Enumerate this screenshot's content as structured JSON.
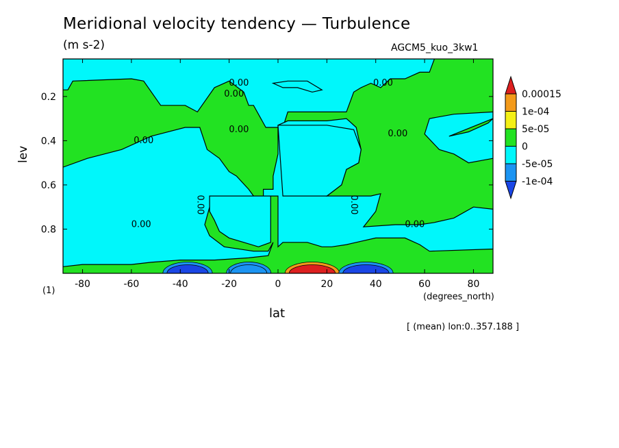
{
  "chart_data": {
    "type": "heatmap",
    "title": "Meridional velocity tendency — Turbulence",
    "units": "(m s-2)",
    "run_label": "AGCM5_kuo_3kw1",
    "xlabel": "lat",
    "xunits": "(degrees_north)",
    "ylabel": "lev",
    "index_label": "(1)",
    "mean_note": "[ (mean) lon:0..357.188 ]",
    "xlim": [
      -88,
      88
    ],
    "ylim": [
      0.03,
      1.0
    ],
    "y_inverted": true,
    "x_ticks": [
      -80,
      -60,
      -40,
      -20,
      0,
      20,
      40,
      60,
      80
    ],
    "x_tick_labels": [
      "-80",
      "-60",
      "-40",
      "-20",
      "0",
      "20",
      "40",
      "60",
      "80"
    ],
    "y_ticks": [
      0.2,
      0.4,
      0.6,
      0.8
    ],
    "y_tick_labels": [
      "0.2",
      "0.4",
      "0.6",
      "0.8"
    ],
    "contour_labels": [
      {
        "text": "0.00",
        "x": -16,
        "y": 0.14
      },
      {
        "text": "0.00",
        "x": -18,
        "y": 0.19
      },
      {
        "text": "0.00",
        "x": 43,
        "y": 0.14
      },
      {
        "text": "0.00",
        "x": -55,
        "y": 0.4
      },
      {
        "text": "0.00",
        "x": -16,
        "y": 0.35
      },
      {
        "text": "0.00",
        "x": 49,
        "y": 0.37
      },
      {
        "text": "0.00",
        "x": -56,
        "y": 0.78
      },
      {
        "text": "0.00",
        "x": 56,
        "y": 0.78
      },
      {
        "text": "0.00",
        "x": -32,
        "y": 0.69
      },
      {
        "text": "0.00",
        "x": 31,
        "y": 0.69
      }
    ],
    "colorbar": {
      "levels": [
        "0.00015",
        "1e-04",
        "5e-05",
        "0",
        "-5e-05",
        "-1e-04"
      ],
      "colors": [
        "#dd1f1f",
        "#f39a1a",
        "#f4f016",
        "#22e222",
        "#00f7fb",
        "#1b94f2",
        "#1a46e6"
      ]
    },
    "fields": {
      "positive_color": "#22e222",
      "negative_color": "#00f7fb",
      "strong_negative_color": "#1b94f2",
      "stronger_negative_color": "#1a46e6",
      "weak_positive_color": "#f4f016",
      "mid_positive_color": "#f39a1a",
      "strong_positive_color": "#dd1f1f"
    },
    "negative_regions": [
      [
        [
          -88,
          0.17
        ],
        [
          -86,
          0.17
        ],
        [
          -84,
          0.13
        ],
        [
          -60,
          0.12
        ],
        [
          -55,
          0.13
        ],
        [
          -48,
          0.24
        ],
        [
          -38,
          0.24
        ],
        [
          -33,
          0.27
        ],
        [
          -26,
          0.16
        ],
        [
          -20,
          0.13
        ],
        [
          -14,
          0.18
        ],
        [
          -12,
          0.24
        ],
        [
          -10,
          0.24
        ],
        [
          -5,
          0.34
        ],
        [
          2,
          0.34
        ],
        [
          4,
          0.27
        ],
        [
          28,
          0.27
        ],
        [
          31,
          0.18
        ],
        [
          34,
          0.16
        ],
        [
          38,
          0.14
        ],
        [
          42,
          0.16
        ],
        [
          46,
          0.12
        ],
        [
          52,
          0.12
        ],
        [
          58,
          0.09
        ],
        [
          62,
          0.09
        ],
        [
          64,
          0.03
        ],
        [
          -88,
          0.03
        ]
      ],
      [
        [
          -88,
          0.52
        ],
        [
          -78,
          0.48
        ],
        [
          -64,
          0.44
        ],
        [
          -52,
          0.38
        ],
        [
          -38,
          0.34
        ],
        [
          -32,
          0.34
        ],
        [
          -29,
          0.44
        ],
        [
          -24,
          0.48
        ],
        [
          -20,
          0.54
        ],
        [
          -17,
          0.56
        ],
        [
          -12,
          0.62
        ],
        [
          -10,
          0.65
        ],
        [
          -6,
          0.65
        ],
        [
          -6,
          0.62
        ],
        [
          -2,
          0.62
        ],
        [
          -2,
          0.56
        ],
        [
          0,
          0.46
        ],
        [
          0,
          0.33
        ],
        [
          4,
          0.31
        ],
        [
          10,
          0.31
        ],
        [
          20,
          0.31
        ],
        [
          28,
          0.3
        ],
        [
          32,
          0.34
        ],
        [
          34,
          0.44
        ],
        [
          33,
          0.5
        ],
        [
          28,
          0.53
        ],
        [
          26,
          0.6
        ],
        [
          20,
          0.65
        ],
        [
          24,
          0.65
        ],
        [
          38,
          0.65
        ],
        [
          42,
          0.64
        ],
        [
          40,
          0.72
        ],
        [
          35,
          0.79
        ],
        [
          48,
          0.78
        ],
        [
          58,
          0.78
        ],
        [
          64,
          0.77
        ],
        [
          72,
          0.75
        ],
        [
          80,
          0.7
        ],
        [
          88,
          0.71
        ],
        [
          88,
          0.89
        ],
        [
          62,
          0.9
        ],
        [
          58,
          0.87
        ],
        [
          52,
          0.84
        ],
        [
          40,
          0.84
        ],
        [
          32,
          0.86
        ],
        [
          28,
          0.87
        ],
        [
          22,
          0.88
        ],
        [
          18,
          0.88
        ],
        [
          12,
          0.86
        ],
        [
          7,
          0.86
        ],
        [
          2,
          0.86
        ],
        [
          0,
          0.88
        ],
        [
          0,
          0.65
        ],
        [
          -10,
          0.65
        ],
        [
          -28,
          0.65
        ],
        [
          -28,
          0.7
        ],
        [
          -30,
          0.78
        ],
        [
          -28,
          0.83
        ],
        [
          -22,
          0.88
        ],
        [
          -10,
          0.9
        ],
        [
          -4,
          0.9
        ],
        [
          -2,
          0.86
        ],
        [
          -4,
          0.92
        ],
        [
          -12,
          0.93
        ],
        [
          -26,
          0.94
        ],
        [
          -40,
          0.94
        ],
        [
          -52,
          0.95
        ],
        [
          -60,
          0.96
        ],
        [
          -68,
          0.96
        ],
        [
          -80,
          0.96
        ],
        [
          -88,
          0.97
        ]
      ],
      [
        [
          -14,
          0.65
        ],
        [
          -3,
          0.65
        ],
        [
          -3,
          0.86
        ],
        [
          -8,
          0.88
        ],
        [
          -14,
          0.86
        ],
        [
          -20,
          0.84
        ],
        [
          -24,
          0.81
        ],
        [
          -26,
          0.76
        ],
        [
          -28,
          0.72
        ],
        [
          -28,
          0.65
        ]
      ],
      [
        [
          0,
          0.33
        ],
        [
          2,
          0.65
        ],
        [
          20,
          0.65
        ],
        [
          26,
          0.6
        ],
        [
          28,
          0.53
        ],
        [
          33,
          0.5
        ],
        [
          34,
          0.44
        ],
        [
          31,
          0.35
        ],
        [
          20,
          0.33
        ]
      ],
      [
        [
          70,
          0.38
        ],
        [
          78,
          0.36
        ],
        [
          86,
          0.32
        ],
        [
          88,
          0.3
        ],
        [
          88,
          0.48
        ],
        [
          78,
          0.5
        ],
        [
          72,
          0.46
        ],
        [
          66,
          0.44
        ],
        [
          60,
          0.37
        ],
        [
          62,
          0.3
        ],
        [
          72,
          0.28
        ],
        [
          88,
          0.27
        ],
        [
          88,
          0.3
        ]
      ],
      [
        [
          -2,
          0.14
        ],
        [
          4,
          0.13
        ],
        [
          12,
          0.13
        ],
        [
          18,
          0.17
        ],
        [
          14,
          0.18
        ],
        [
          8,
          0.16
        ],
        [
          2,
          0.16
        ]
      ]
    ],
    "surface_bands": [
      {
        "x": [
          -46,
          -28
        ],
        "color": "#1a46e6"
      },
      {
        "x": [
          4,
          24
        ],
        "color": "#dd1f1f"
      },
      {
        "x": [
          26,
          46
        ],
        "color": "#1a46e6"
      },
      {
        "x": [
          -20,
          -4
        ],
        "color": "#1b94f2"
      }
    ]
  }
}
